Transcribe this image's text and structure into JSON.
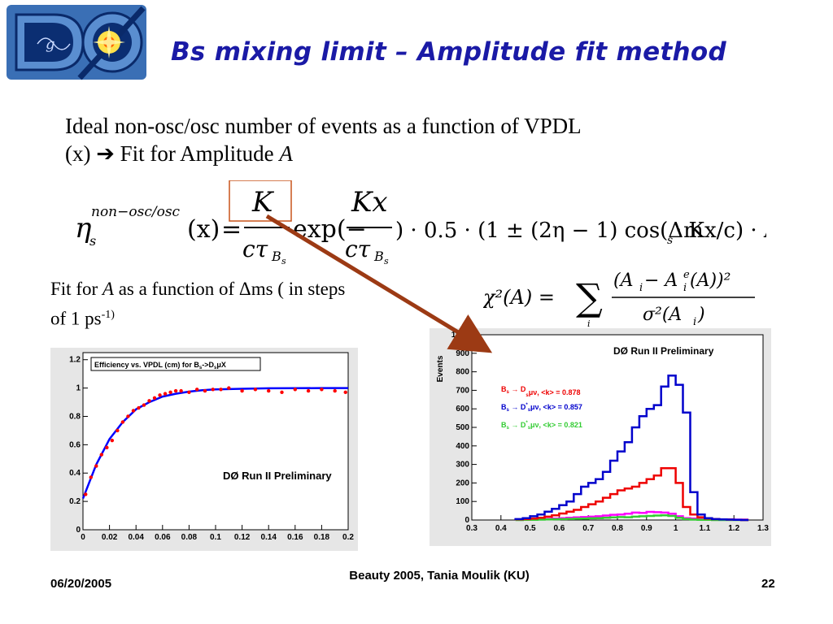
{
  "slide": {
    "title": "Bs mixing limit – Amplitude fit method",
    "logo_text": "DØ",
    "body_line1": "Ideal non-osc/osc number of events as a function of VPDL",
    "body_line2_prefix": "(x) ",
    "body_arrow": "➔",
    "body_line2_mid": " Fit for Amplitude ",
    "amp_symbol": "A",
    "fit_text_1": "Fit for ",
    "fit_text_2": " as a function of ",
    "delta": "Δ",
    "fit_text_3": "ms ( in steps",
    "fit_text_4": "of 1 ps",
    "fit_text_sup": "-1)",
    "footer_date": "06/20/2005",
    "footer_center": "Beauty 2005, Tania Moulik (KU)",
    "footer_page": "22"
  },
  "formulas": {
    "eta_lhs_sym": "η",
    "eta_sub": "s",
    "eta_sup": "non−osc/osc",
    "eta_arg": "(x)",
    "eq": "=",
    "num1": "K",
    "den1": "cτ",
    "den_sub": "B",
    "den_subsub": "s",
    "exp_open": "exp(−",
    "num2": "Kx",
    "tail": ") · 0.5 · (1 ± (2η − 1) cos(Δm",
    "tail_sub": "s",
    "tail_end": " · Kx/c) · A)",
    "chi_lhs": "χ²(A) =",
    "sigma": "∑",
    "sigma_sub": "i",
    "chi_num": "(A",
    "chi_num_i": "i",
    "chi_num_mid": " − A",
    "chi_num_sup": "e",
    "chi_num_sub": "i",
    "chi_num_end": "(A))²",
    "chi_den": "σ²(A",
    "chi_den_i": "i",
    "chi_den_end": ")"
  },
  "colors": {
    "title": "#1a1aa6",
    "highlight_box": "#c8541a",
    "arrow": "#9c3a14",
    "eff_curve": "#0000ff",
    "eff_points": "#ff0000",
    "series_blue": "#0000cc",
    "series_red": "#ee0000",
    "series_green": "#33cc33",
    "series_magenta": "#ff00ff"
  },
  "chart_data": [
    {
      "type": "scatter",
      "title": "Efficiency vs. VPDL (cm) for Bs->DsμX",
      "title_main": "Efficiency vs. VPDL (cm) for B",
      "title_sub1": "s",
      "title_mid": "->D",
      "title_sub2": "s",
      "title_end": "μX",
      "annotation": "DØ Run II Preliminary",
      "xlim": [
        0,
        0.2
      ],
      "ylim": [
        0,
        1.25
      ],
      "x_ticks": [
        0,
        0.02,
        0.04,
        0.06,
        0.08,
        0.1,
        0.12,
        0.14,
        0.16,
        0.18,
        0.2
      ],
      "x_tick_labels": [
        "0",
        "0.02",
        "0.04",
        "0.06",
        "0.08",
        "0.1",
        "0.12",
        "0.14",
        "0.16",
        "0.18",
        "0.2"
      ],
      "y_ticks": [
        0,
        0.2,
        0.4,
        0.6,
        0.8,
        1,
        1.2
      ],
      "y_tick_labels": [
        "0",
        "0.2",
        "0.4",
        "0.6",
        "0.8",
        "1",
        "1.2"
      ],
      "points": {
        "x": [
          0.002,
          0.006,
          0.01,
          0.014,
          0.018,
          0.022,
          0.026,
          0.03,
          0.034,
          0.038,
          0.042,
          0.046,
          0.05,
          0.054,
          0.058,
          0.062,
          0.066,
          0.07,
          0.074,
          0.08,
          0.086,
          0.092,
          0.098,
          0.104,
          0.11,
          0.12,
          0.13,
          0.14,
          0.15,
          0.16,
          0.17,
          0.18,
          0.19,
          0.198
        ],
        "y": [
          0.25,
          0.37,
          0.45,
          0.53,
          0.58,
          0.63,
          0.7,
          0.76,
          0.8,
          0.84,
          0.86,
          0.88,
          0.91,
          0.93,
          0.95,
          0.96,
          0.97,
          0.98,
          0.98,
          0.97,
          0.99,
          0.98,
          0.99,
          0.99,
          1.0,
          0.98,
          0.99,
          0.98,
          0.97,
          0.99,
          0.98,
          0.99,
          0.98,
          0.97
        ]
      },
      "curve": {
        "x": [
          0.0,
          0.01,
          0.02,
          0.03,
          0.04,
          0.05,
          0.06,
          0.07,
          0.08,
          0.09,
          0.1,
          0.12,
          0.14,
          0.16,
          0.18,
          0.2
        ],
        "y": [
          0.22,
          0.46,
          0.64,
          0.76,
          0.85,
          0.9,
          0.94,
          0.96,
          0.975,
          0.985,
          0.99,
          0.995,
          0.998,
          0.999,
          1.0,
          1.0
        ]
      }
    },
    {
      "type": "line",
      "title": "DØ Run II Preliminary",
      "ylabel": "Events",
      "xlim": [
        0.3,
        1.3
      ],
      "ylim": [
        0,
        1000
      ],
      "x_ticks": [
        0.3,
        0.4,
        0.5,
        0.6,
        0.7,
        0.8,
        0.9,
        1.0,
        1.1,
        1.2,
        1.3
      ],
      "x_tick_labels": [
        "0.3",
        "0.4",
        "0.5",
        "0.6",
        "0.7",
        "0.8",
        "0.9",
        "1",
        "1.1",
        "1.2",
        "1.3"
      ],
      "y_ticks": [
        0,
        100,
        200,
        300,
        400,
        500,
        600,
        700,
        800,
        900,
        1000
      ],
      "y_tick_labels": [
        "0",
        "100",
        "200",
        "300",
        "400",
        "500",
        "600",
        "700",
        "800",
        "900",
        "1000"
      ],
      "bin_edges": [
        0.45,
        0.475,
        0.5,
        0.525,
        0.55,
        0.575,
        0.6,
        0.625,
        0.65,
        0.675,
        0.7,
        0.725,
        0.75,
        0.775,
        0.8,
        0.825,
        0.85,
        0.875,
        0.9,
        0.925,
        0.95,
        0.975,
        1.0,
        1.025,
        1.05,
        1.075,
        1.1,
        1.125,
        1.15,
        1.175,
        1.2,
        1.225,
        1.25
      ],
      "series": [
        {
          "name": "<k> = 0.857",
          "legend_main": "B",
          "legend_sub1": "s",
          "legend_mid": " → D",
          "legend_sup": "*",
          "legend_sub2": "s",
          "legend_end": "μν, <k> = 0.857",
          "color": "#0000cc",
          "values": [
            5,
            10,
            20,
            30,
            45,
            60,
            80,
            100,
            140,
            180,
            200,
            220,
            260,
            320,
            370,
            420,
            500,
            560,
            600,
            620,
            720,
            780,
            730,
            580,
            150,
            30,
            10,
            5,
            3,
            2,
            1,
            0
          ]
        },
        {
          "name": "<k> = 0.878",
          "legend_main": "B",
          "legend_sub1": "s",
          "legend_mid": " → D",
          "legend_sup": "",
          "legend_sub2": "s",
          "legend_end": "μν, <k> = 0.878",
          "color": "#ee0000",
          "values": [
            3,
            5,
            8,
            12,
            18,
            25,
            35,
            45,
            55,
            70,
            85,
            100,
            120,
            140,
            160,
            170,
            180,
            200,
            220,
            240,
            280,
            280,
            200,
            70,
            30,
            15,
            8,
            5,
            3,
            2,
            1,
            0
          ]
        },
        {
          "name": "<k> = 0.821",
          "legend_main": "B",
          "legend_sub1": "s",
          "legend_mid": " → D",
          "legend_sup": "*",
          "legend_sub2": "s",
          "legend_end": "μν, <k> = 0.821",
          "color": "#33cc33",
          "values": [
            0,
            1,
            1,
            2,
            3,
            4,
            5,
            6,
            7,
            8,
            9,
            10,
            12,
            14,
            16,
            15,
            18,
            20,
            22,
            24,
            25,
            22,
            12,
            5,
            2,
            1,
            1,
            0,
            0,
            0,
            0,
            0
          ]
        },
        {
          "name": "",
          "legend_main": "",
          "color": "#ff00ff",
          "values": [
            3,
            4,
            5,
            5,
            6,
            8,
            10,
            12,
            14,
            16,
            18,
            20,
            24,
            28,
            30,
            34,
            40,
            38,
            44,
            42,
            40,
            34,
            20,
            10,
            8,
            6,
            5,
            4,
            3,
            3,
            2,
            2
          ]
        }
      ]
    }
  ]
}
